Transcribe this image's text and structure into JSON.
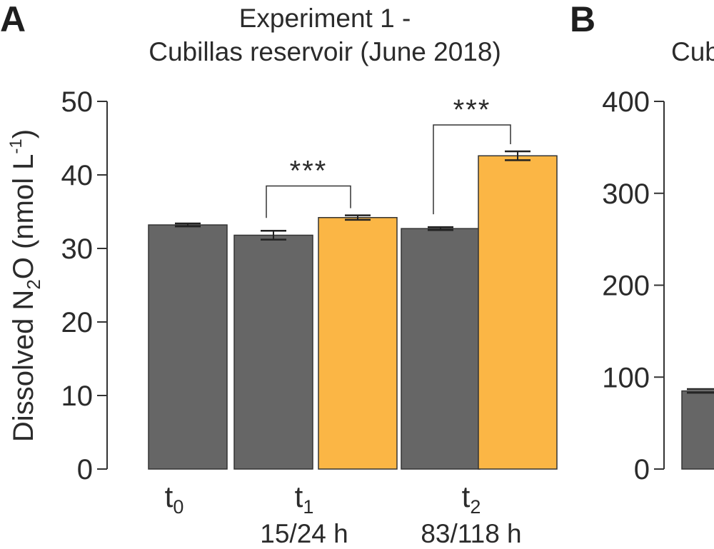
{
  "chart_data": [
    {
      "panel": "A",
      "type": "bar",
      "title_line1": "Experiment 1 -",
      "title_line2": "Cubillas reservoir (June 2018)",
      "ylabel": {
        "prefix": "Dissolved N",
        "sub": "2",
        "mid": "O (nmol L",
        "sup": "-1",
        "suffix": ")"
      },
      "ylim": [
        0,
        50
      ],
      "yticks": [
        "0",
        "10",
        "20",
        "30",
        "40",
        "50"
      ],
      "colors": {
        "dark": "#666666",
        "orange": "#fbb645"
      },
      "groups": [
        {
          "label": "t",
          "sub": "0",
          "line2": ""
        },
        {
          "label": "t",
          "sub": "1",
          "line2": "15/24 h"
        },
        {
          "label": "t",
          "sub": "2",
          "line2": "83/118 h"
        }
      ],
      "bars": [
        {
          "group": 0,
          "color": "dark",
          "value": 33.2,
          "err": 0.2
        },
        {
          "group": 1,
          "color": "dark",
          "value": 31.8,
          "err": 0.6
        },
        {
          "group": 1,
          "color": "orange",
          "value": 34.2,
          "err": 0.3
        },
        {
          "group": 2,
          "color": "dark",
          "value": 32.7,
          "err": 0.2
        },
        {
          "group": 2,
          "color": "orange",
          "value": 42.6,
          "err": 0.6
        }
      ],
      "significance": [
        {
          "bars": [
            1,
            2
          ],
          "label": "***",
          "level": 38.5
        },
        {
          "bars": [
            3,
            4
          ],
          "label": "***",
          "level": 46.8
        }
      ]
    },
    {
      "panel": "B",
      "type": "bar",
      "title_partial": "Cub",
      "ylim": [
        0,
        400
      ],
      "yticks": [
        "0",
        "100",
        "200",
        "300",
        "400"
      ],
      "bars": [
        {
          "group": 0,
          "color": "dark",
          "value": 85,
          "err": 2
        }
      ]
    }
  ]
}
